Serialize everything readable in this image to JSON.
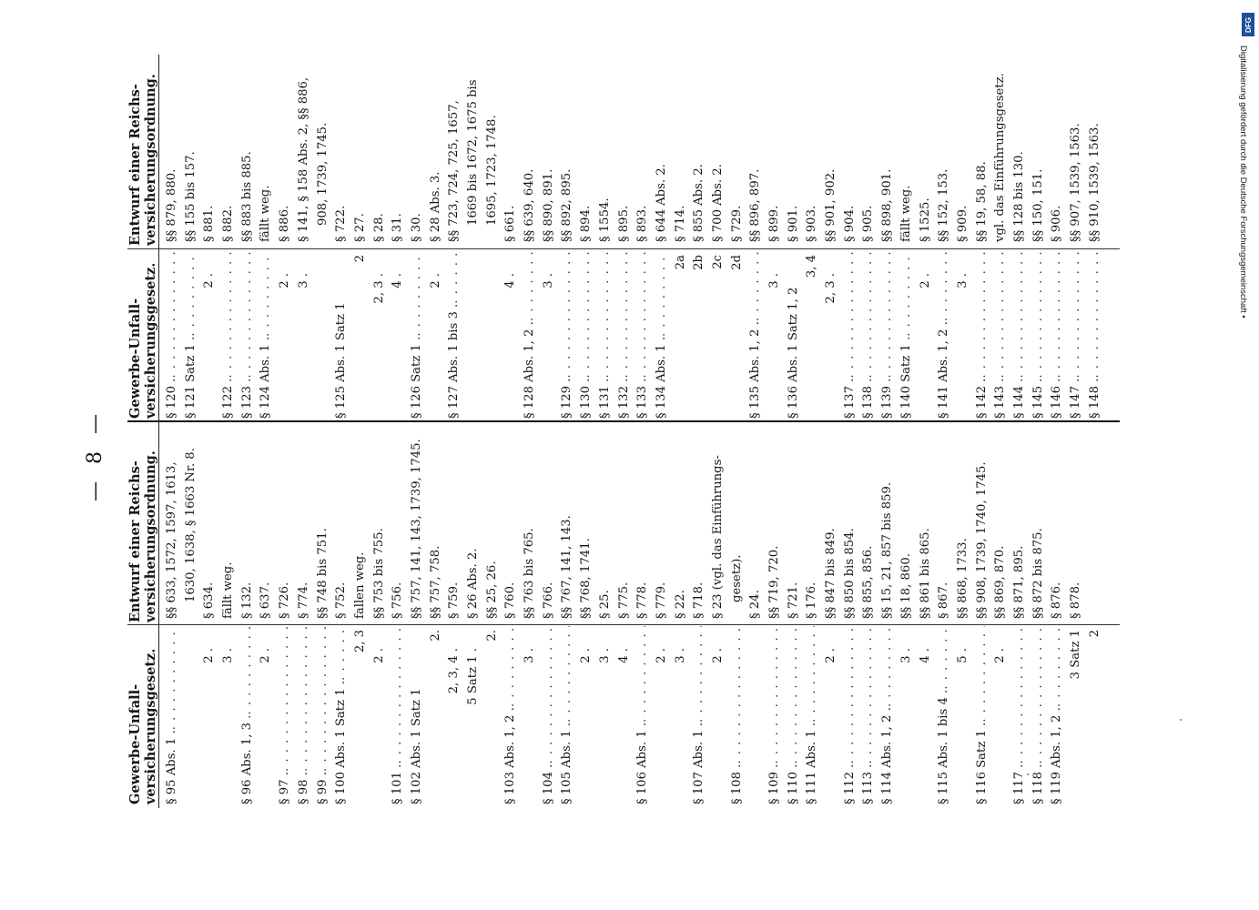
{
  "page_number": "— 8 —",
  "headers": {
    "gewerbe": [
      "Gewerbe-Unfall-",
      "versicherungsgesetz."
    ],
    "entwurf": [
      "Entwurf einer Reichs-",
      "versicherungsordnung."
    ]
  },
  "table1": {
    "left": [
      "§ 95 Abs. 1 .",
      "",
      "2 .",
      "3 .",
      "§ 96 Abs. 1, 3 .",
      "2 .",
      "§ 97 .",
      "§ 98 .",
      "§ 99 .",
      "§ 100 Abs. 1 Satz 1 .",
      "2, 3",
      "2 .",
      "§ 101 .",
      "§ 102 Abs. 1 Satz 1",
      "2.",
      "2, 3, 4 .",
      "5 Satz 1 .",
      "2.",
      "§ 103 Abs. 1, 2 .",
      "3 .",
      "§ 104 .",
      "§ 105 Abs. 1 .",
      "2 .",
      "3 .",
      "4 .",
      "§ 106 Abs. 1 .",
      "2 .",
      "3 .",
      "§ 107 Abs. 1 .",
      "2 .",
      "§ 108 .",
      "",
      "§ 109 .",
      "§ 110 .",
      "§ 111 Abs. 1 .",
      "2 .",
      "§ 112 .",
      "§ 113 .",
      "§ 114 Abs. 1, 2 .",
      "3 .",
      "4 .",
      "§ 115 Abs. 1 bis 4 .",
      "5 .",
      "§ 116 Satz 1 .",
      "2 .",
      "§ 117 .",
      "§ 118 .",
      "§ 119 Abs. 1, 2 .",
      "3 Satz 1",
      "2"
    ],
    "right": [
      "§§ 633, 1572, 1597, 1613,",
      "1630, 1638, § 1663 Nr. 8.",
      "§ 634.",
      "fällt weg.",
      "§ 132.",
      "§ 637.",
      "§ 726.",
      "§ 774.",
      "§§ 748 bis 751.",
      "§ 752.",
      "fallen weg.",
      "§§ 753 bis 755.",
      "§ 756.",
      "§§ 757, 141, 143, 1739, 1745.",
      "§§ 757, 758.",
      "§ 759.",
      "§ 26 Abs. 2.",
      "§§ 25, 26.",
      "§ 760.",
      "§§ 763 bis 765.",
      "§ 766.",
      "§§ 767, 141, 143.",
      "§§ 768, 1741.",
      "§ 25.",
      "§ 775.",
      "§ 778.",
      "§ 779.",
      "§ 22.",
      "§ 718.",
      "§ 23 (vgl. das Einführungs-",
      "gesetz).",
      "§ 24.",
      "§§ 719, 720.",
      "§ 721.",
      "§ 176.",
      "§§ 847 bis 849.",
      "§§ 850 bis 854.",
      "§§ 855, 856.",
      "§§ 15, 21, 857 bis 859.",
      "§§ 18, 860.",
      "§§ 861 bis 865.",
      "§ 867.",
      "§§ 868, 1733.",
      "§§ 908, 1739, 1740, 1745.",
      "§§ 869, 870.",
      "§§ 871, 895.",
      "§§ 872 bis 875.",
      "§ 876.",
      "§ 878."
    ]
  },
  "table2": {
    "left": [
      "§ 120 .",
      "§ 121 Satz 1 .",
      "2 .",
      "§ 122 .",
      "§ 123 .",
      "§ 124 Abs. 1 .",
      "2 .",
      "3 .",
      "",
      "§ 125 Abs. 1 Satz 1",
      "2",
      "2, 3 .",
      "4 .",
      "§ 126 Satz 1 .",
      "2 .",
      "§ 127 Abs. 1 bis 3 .",
      "",
      "",
      "4 .",
      "§ 128 Abs. 1, 2 .",
      "3 .",
      "§ 129 .",
      "§ 130 .",
      "§ 131 .",
      "§ 132 .",
      "§ 133 .",
      "§ 134 Abs. 1 .",
      "2a",
      "2b",
      "2c",
      "2d",
      "§ 135 Abs. 1, 2 .",
      "3 .",
      "§ 136 Abs. 1 Satz 1, 2",
      "3, 4",
      "2, 3 .",
      "§ 137 .",
      "§ 138 .",
      "§ 139 .",
      "§ 140 Satz 1 .",
      "2 .",
      "§ 141 Abs. 1, 2 .",
      "3 .",
      "§ 142 .",
      "§ 143 .",
      "§ 144 .",
      "§ 145 .",
      "§ 146 .",
      "§ 147 .",
      "§ 148 ."
    ],
    "right": [
      "§§ 879, 880.",
      "§§ 155 bis 157.",
      "§ 881.",
      "§ 882.",
      "§§ 883 bis 885.",
      "fällt weg.",
      "§ 886.",
      "§ 141, § 158 Abs. 2, §§ 886,",
      "908, 1739, 1745.",
      "§ 722.",
      "§ 27.",
      "§ 28.",
      "§ 31.",
      "§ 30.",
      "§ 28 Abs. 3.",
      "§§ 723, 724, 725, 1657,",
      "1669 bis 1672, 1675 bis",
      "1695, 1723, 1748.",
      "§ 661.",
      "§§ 639, 640.",
      "§§ 890, 891.",
      "§§ 892, 895.",
      "§ 894.",
      "§ 1554.",
      "§ 895.",
      "§ 893.",
      "§ 644 Abs. 2.",
      "§ 714.",
      "§ 855 Abs. 2.",
      "§ 700 Abs. 2.",
      "§ 729.",
      "§§ 896, 897.",
      "§ 899.",
      "§ 901.",
      "§ 903.",
      "§§ 901, 902.",
      "§ 904.",
      "§ 905.",
      "§§ 898, 901.",
      "fällt weg.",
      "§ 1525.",
      "§§ 152, 153.",
      "§ 909.",
      "§§ 19, 58, 88.",
      "vgl. das Einführungsgesetz.",
      "§§ 128 bis 130.",
      "§§ 150, 151.",
      "§ 906.",
      "§§ 907, 1539, 1563.",
      "§§ 910, 1539, 1563."
    ]
  },
  "credit": {
    "badge": "DFG",
    "text": "Digitalisierung gefördert durch die Deutsche Forschungsgemeinschaft •"
  }
}
